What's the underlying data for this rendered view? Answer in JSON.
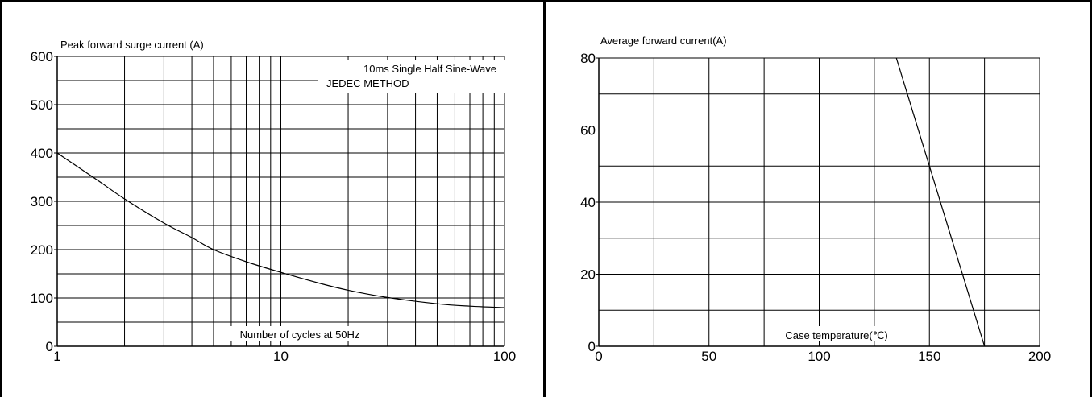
{
  "chart_data": [
    {
      "type": "line",
      "x_scale": "log",
      "xlabel": "Number of cycles at 50Hz",
      "ylabel": "Peak forward surge current (A)",
      "annotation_lines": [
        "10ms Single Half Sine-Wave",
        "JEDEC METHOD"
      ],
      "xlim": [
        1,
        100
      ],
      "ylim": [
        0,
        600
      ],
      "x_ticks": [
        1,
        10,
        100
      ],
      "x_tick_labels": [
        "1",
        "10",
        "100"
      ],
      "y_ticks": [
        0,
        100,
        200,
        300,
        400,
        500,
        600
      ],
      "y_tick_labels": [
        "0",
        "100",
        "200",
        "300",
        "400",
        "500",
        "600"
      ],
      "grid": true,
      "series": [
        {
          "points": [
            [
              1,
              400
            ],
            [
              1.5,
              345
            ],
            [
              2,
              305
            ],
            [
              3,
              255
            ],
            [
              4,
              225
            ],
            [
              5,
              200
            ],
            [
              7,
              175
            ],
            [
              10,
              153
            ],
            [
              15,
              130
            ],
            [
              20,
              116
            ],
            [
              30,
              101
            ],
            [
              50,
              88
            ],
            [
              70,
              83
            ],
            [
              100,
              80
            ]
          ]
        }
      ]
    },
    {
      "type": "line",
      "xlabel": "Case temperature(℃)",
      "ylabel": "Average forward current(A)",
      "xlim": [
        0,
        200
      ],
      "ylim": [
        0,
        80
      ],
      "x_ticks": [
        0,
        50,
        100,
        150,
        200
      ],
      "x_tick_labels": [
        "0",
        "50",
        "100",
        "150",
        "200"
      ],
      "y_ticks": [
        0,
        20,
        40,
        60,
        80
      ],
      "y_tick_labels": [
        "0",
        "20",
        "40",
        "60",
        "80"
      ],
      "grid": true,
      "series": [
        {
          "points": [
            [
              135,
              80
            ],
            [
              175,
              0
            ]
          ]
        }
      ]
    }
  ]
}
